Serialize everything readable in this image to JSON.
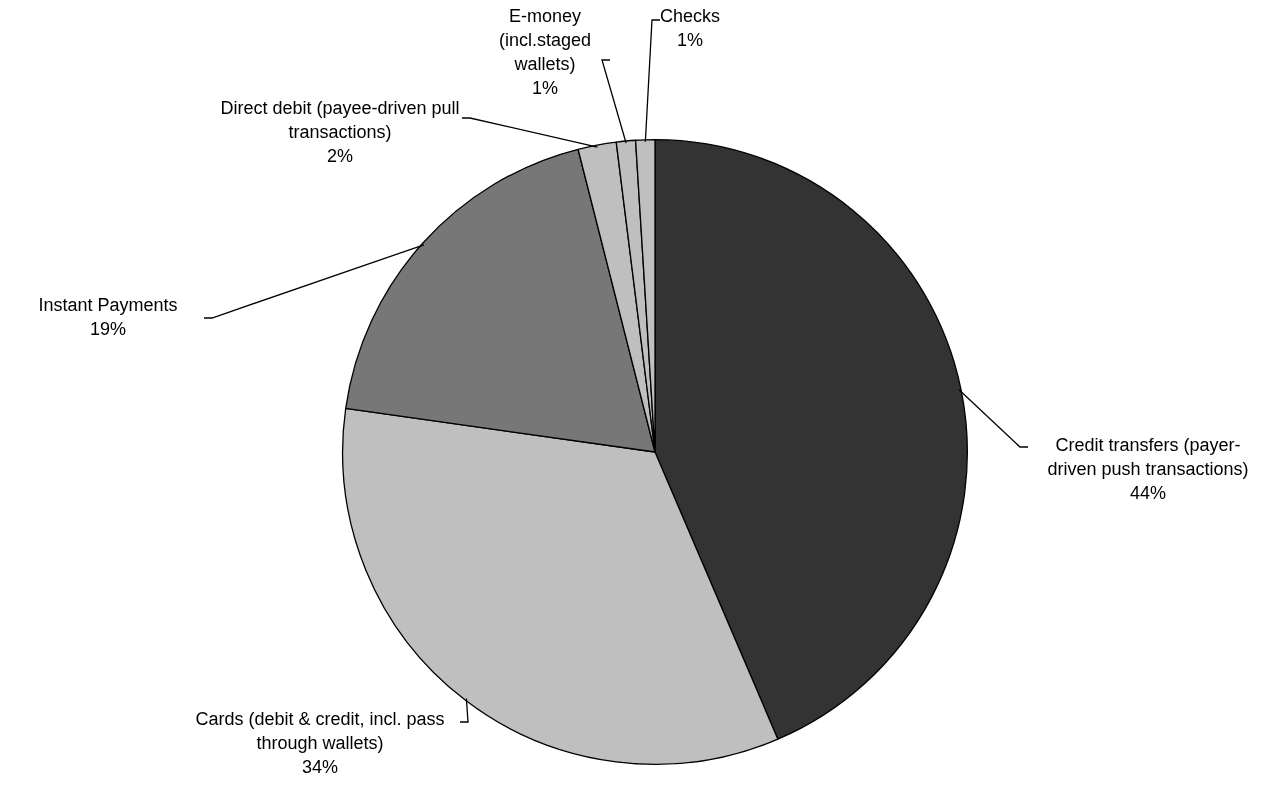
{
  "chart_data": {
    "type": "pie",
    "categories": [
      "Credit transfers (payer-driven push transactions)",
      "Cards (debit & credit, incl. pass through wallets)",
      "Instant Payments",
      "Direct debit (payee-driven pull transactions)",
      "E-money (incl.staged wallets)",
      "Checks"
    ],
    "values": [
      44,
      34,
      19,
      2,
      1,
      1
    ],
    "value_labels": [
      "44%",
      "34%",
      "19%",
      "2%",
      "1%",
      "1%"
    ],
    "colors": [
      "#333333",
      "#bfbfbf",
      "#777777",
      "#bfbfbf",
      "#bfbfbf",
      "#bfbfbf"
    ],
    "legend": false
  }
}
